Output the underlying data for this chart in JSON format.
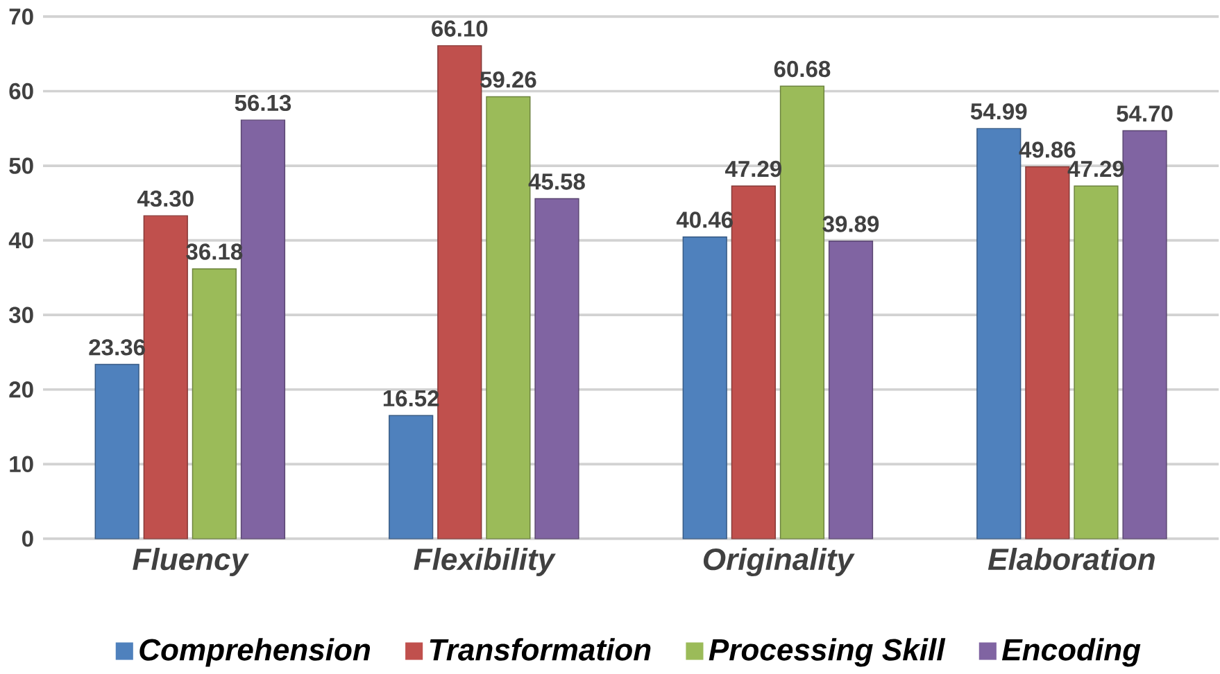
{
  "chart_data": {
    "type": "bar",
    "categories": [
      "Fluency",
      "Flexibility",
      "Originality",
      "Elaboration"
    ],
    "series": [
      {
        "name": "Comprehension",
        "color": "#4f81bd",
        "values": [
          23.36,
          16.52,
          40.46,
          54.99
        ],
        "value_labels": [
          "23.36",
          "16.52",
          "40.46",
          "54.99"
        ]
      },
      {
        "name": "Transformation",
        "color": "#c0504d",
        "values": [
          43.3,
          66.1,
          47.29,
          49.86
        ],
        "value_labels": [
          "43.30",
          "66.10",
          "47.29",
          "49.86"
        ]
      },
      {
        "name": "Processing Skill",
        "color": "#9bbb59",
        "values": [
          36.18,
          59.26,
          60.68,
          47.29
        ],
        "value_labels": [
          "36.18",
          "59.26",
          "60.68",
          "47.29"
        ]
      },
      {
        "name": "Encoding",
        "color": "#8064a2",
        "values": [
          56.13,
          45.58,
          39.89,
          54.7
        ],
        "value_labels": [
          "56.13",
          "45.58",
          "39.89",
          "54.70"
        ]
      }
    ],
    "ylim": [
      0,
      70
    ],
    "yticks": [
      0,
      10,
      20,
      30,
      40,
      50,
      60,
      70
    ],
    "grid": "y",
    "legend": "bottom"
  }
}
